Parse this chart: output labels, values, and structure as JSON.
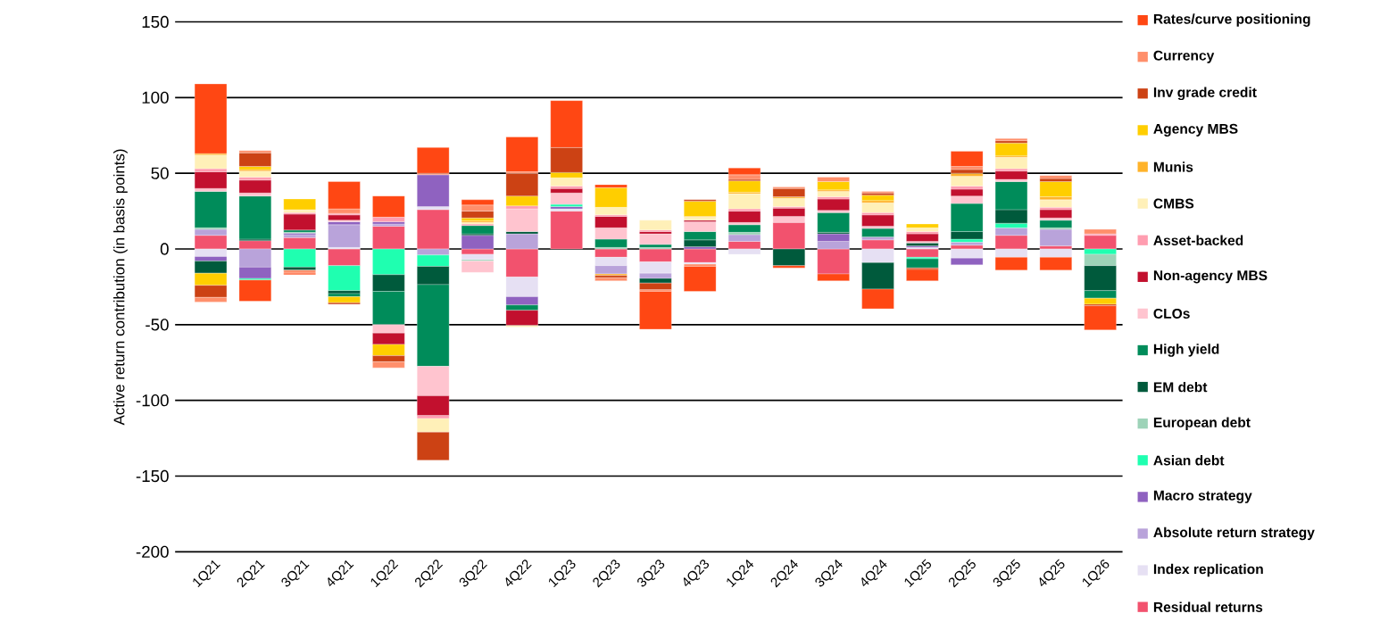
{
  "chart_data": {
    "type": "bar",
    "stacked": true,
    "ylabel": "Active return contribution (in basis points)",
    "categories": [
      "1Q21",
      "2Q21",
      "3Q21",
      "4Q21",
      "1Q22",
      "2Q22",
      "3Q22",
      "4Q22",
      "1Q23",
      "2Q23",
      "3Q23",
      "4Q23",
      "1Q24",
      "2Q24",
      "3Q24",
      "4Q24",
      "1Q25",
      "2Q25",
      "3Q25",
      "4Q25",
      "1Q26"
    ],
    "ylim": [
      -200,
      150
    ],
    "yticks": [
      -200,
      -150,
      -100,
      -50,
      0,
      50,
      100,
      150
    ],
    "grid": "y",
    "legend": "right",
    "series": [
      {
        "name": "Residual returns",
        "color": "#f2526e",
        "values": [
          9,
          5.5,
          7.5,
          -11,
          15,
          26,
          -3.5,
          -18.5,
          25,
          -5.5,
          -8.5,
          -9,
          5,
          17.5,
          -16.5,
          6,
          -5.5,
          2.5,
          9,
          2,
          9
        ]
      },
      {
        "name": "Index replication",
        "color": "#e6e0f3",
        "values": [
          -5,
          null,
          null,
          1,
          null,
          2,
          -3.5,
          -13,
          1.5,
          -5.5,
          -7.5,
          -1,
          -3.5,
          null,
          null,
          -9,
          1,
          -6,
          -5.5,
          -5.5,
          null
        ]
      },
      {
        "name": "Absolute return strategy",
        "color": "#b9a3da",
        "values": [
          4,
          -12,
          2,
          15,
          1.5,
          -4,
          null,
          10,
          null,
          -5.5,
          -3.5,
          null,
          4.5,
          null,
          5,
          2,
          null,
          2,
          5,
          11,
          null
        ]
      },
      {
        "name": "Macro strategy",
        "color": "#8f62c0",
        "values": [
          -3,
          -7.5,
          1,
          2,
          1.5,
          21,
          9,
          -5.5,
          1.5,
          null,
          null,
          1.5,
          null,
          null,
          5,
          null,
          1,
          -4.5,
          null,
          null,
          null
        ]
      },
      {
        "name": "Asian debt",
        "color": "#1fffb0",
        "values": [
          null,
          -1,
          -12,
          -16.5,
          -17,
          -7.5,
          null,
          null,
          1.5,
          null,
          null,
          null,
          null,
          null,
          null,
          null,
          -1,
          2,
          3,
          null,
          -3.5
        ]
      },
      {
        "name": "European debt",
        "color": "#9dd3b8",
        "values": [
          1,
          null,
          0.5,
          null,
          null,
          null,
          -1,
          null,
          null,
          1,
          1,
          null,
          1.5,
          null,
          null,
          null,
          null,
          null,
          null,
          1,
          -7.5
        ]
      },
      {
        "name": "EM debt",
        "color": "#005a3c",
        "values": [
          -8,
          1,
          -2,
          -2,
          -11,
          -12,
          1,
          1.5,
          null,
          null,
          -3,
          4.5,
          null,
          -11,
          1,
          -17.5,
          2,
          5,
          9,
          null,
          -16.5
        ]
      },
      {
        "name": "High yield",
        "color": "#008c5a",
        "values": [
          24,
          28.5,
          1.5,
          -2,
          -22,
          -54,
          5.5,
          -3.5,
          null,
          5.5,
          2,
          5.5,
          5,
          null,
          13,
          5.5,
          -6,
          18.5,
          18.5,
          5,
          -5
        ]
      },
      {
        "name": "CLOs",
        "color": "#ffc4cf",
        "values": [
          2,
          2,
          null,
          1,
          -5.5,
          -19.5,
          -7.5,
          15,
          7.5,
          7.5,
          7,
          6.5,
          1.5,
          4,
          1.5,
          1.5,
          1,
          5,
          1.5,
          1.5,
          null
        ]
      },
      {
        "name": "Non-agency MBS",
        "color": "#c2102e",
        "values": [
          11,
          8.5,
          10.5,
          3.5,
          -7.5,
          -13,
          null,
          -10,
          3,
          7.5,
          1.5,
          1,
          7.5,
          5.5,
          7.5,
          7.5,
          5,
          4.5,
          5.5,
          5.5,
          null
        ]
      },
      {
        "name": "Asset-backed",
        "color": "#ff9db0",
        "values": [
          2,
          2,
          1,
          1,
          3,
          -2,
          1,
          2,
          1.5,
          1,
          1,
          null,
          1.5,
          1,
          1.5,
          1.5,
          1.5,
          2,
          1.5,
          1.5,
          1
        ]
      },
      {
        "name": "CMBS",
        "color": "#fff0b8",
        "values": [
          9,
          4,
          2,
          null,
          null,
          -9,
          1,
          -1,
          5.5,
          5,
          6.5,
          2,
          10,
          5.5,
          3.5,
          6.5,
          2.5,
          6.5,
          7.5,
          5,
          null
        ]
      },
      {
        "name": "Munis",
        "color": "#ffb32a",
        "values": [
          1,
          1,
          null,
          null,
          null,
          null,
          1,
          null,
          null,
          -1,
          null,
          0.5,
          1,
          1,
          1,
          1.5,
          null,
          2,
          1,
          2,
          null
        ]
      },
      {
        "name": "Agency MBS",
        "color": "#ffce00",
        "values": [
          -8,
          2,
          7,
          -4,
          -7.5,
          null,
          2,
          6.5,
          3.5,
          13,
          null,
          10,
          7.5,
          null,
          5.5,
          3.5,
          2.5,
          null,
          8.5,
          10,
          -4
        ]
      },
      {
        "name": "Inv grade credit",
        "color": "#cc4214",
        "values": [
          -8,
          9,
          null,
          -1,
          -4,
          -18.5,
          4.5,
          15,
          16.5,
          -1.5,
          -4.5,
          1,
          1,
          5.5,
          null,
          1.5,
          -1,
          2.5,
          1.5,
          2,
          -1
        ]
      },
      {
        "name": "Currency",
        "color": "#ff8f6b",
        "values": [
          -3,
          1.5,
          -2,
          3,
          -4,
          1,
          4,
          1,
          null,
          -2,
          -1,
          -1.5,
          3,
          1,
          3,
          1,
          null,
          2,
          1.5,
          2,
          3
        ]
      },
      {
        "name": "Rates/curve positioning",
        "color": "#ff4713",
        "values": [
          46,
          -14,
          -1,
          18,
          14,
          17,
          3.5,
          23,
          31,
          2,
          -25,
          -16.5,
          4.5,
          -1.5,
          -4.5,
          -13,
          -7.5,
          10,
          -8.5,
          -8.5,
          -16
        ]
      }
    ]
  }
}
